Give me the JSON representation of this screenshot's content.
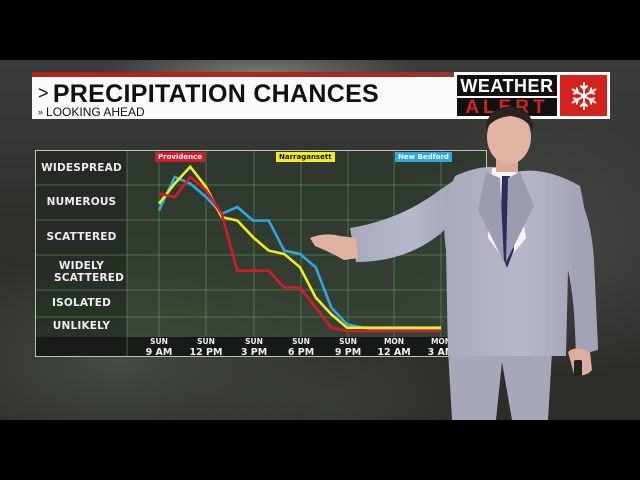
{
  "header": {
    "title": "PRECIPITATION CHANCES",
    "title_chevron": ">",
    "subtitle": "LOOKING AHEAD",
    "subtitle_chevron": "»"
  },
  "alert_badge": {
    "line1": "WEATHER",
    "line2": "ALERT",
    "icon": "snowflake-icon",
    "icon_glyph": "❄",
    "color": "#d2231e"
  },
  "colors": {
    "providence": "#d7192b",
    "narragansett": "#f2ec1a",
    "new_bedford": "#2ea8e0",
    "grid": "#5fa552"
  },
  "chart_data": {
    "type": "line",
    "title": "PRECIPITATION CHANCES",
    "subtitle": "LOOKING AHEAD",
    "xlabel": "",
    "ylabel": "",
    "y_categories": [
      "UNLIKELY",
      "ISOLATED",
      "WIDELY SCATTERED",
      "SCATTERED",
      "NUMEROUS",
      "WIDESPREAD"
    ],
    "y_scale": "0 = Unlikely, 1 = Isolated, 2 = Widely Scattered, 3 = Scattered, 4 = Numerous, 5 = Widespread",
    "ylim": [
      0,
      5
    ],
    "x_ticks": [
      {
        "day": "SUN",
        "time": "9 AM"
      },
      {
        "day": "SUN",
        "time": "12 PM"
      },
      {
        "day": "SUN",
        "time": "3 PM"
      },
      {
        "day": "SUN",
        "time": "6 PM"
      },
      {
        "day": "SUN",
        "time": "9 PM"
      },
      {
        "day": "MON",
        "time": "12 AM"
      },
      {
        "day": "MON",
        "time": "3 AM"
      }
    ],
    "x": [
      "Sun 9AM",
      "10AM",
      "11AM",
      "12PM",
      "1PM",
      "2PM",
      "3PM",
      "4PM",
      "5PM",
      "6PM",
      "7PM",
      "8PM",
      "9PM",
      "10PM",
      "11PM",
      "Mon 12AM",
      "1AM",
      "2AM",
      "3AM"
    ],
    "series": [
      {
        "name": "Providence",
        "color": "#d7192b",
        "values": [
          4.1,
          4.0,
          4.6,
          4.2,
          3.5,
          1.8,
          1.8,
          1.8,
          1.3,
          1.3,
          0.7,
          0.1,
          0.0,
          0.0,
          0.0,
          0.0,
          0.0,
          0.0,
          0.0
        ]
      },
      {
        "name": "Narragansett",
        "color": "#f2ec1a",
        "values": [
          3.8,
          4.4,
          4.9,
          4.3,
          3.4,
          3.3,
          2.8,
          2.4,
          2.3,
          1.9,
          1.0,
          0.5,
          0.1,
          0.1,
          0.1,
          0.1,
          0.1,
          0.1,
          0.1
        ]
      },
      {
        "name": "New Bedford",
        "color": "#2ea8e0",
        "values": [
          3.6,
          4.6,
          4.4,
          4.0,
          3.5,
          3.7,
          3.3,
          3.3,
          2.4,
          2.3,
          1.9,
          0.7,
          0.2,
          0.1,
          0.05,
          0.05,
          0.05,
          0.05,
          0.05
        ]
      }
    ],
    "legend": [
      "Providence",
      "Narragansett",
      "New Bedford"
    ],
    "legend_position": "top (colored tags)",
    "grid": true
  }
}
